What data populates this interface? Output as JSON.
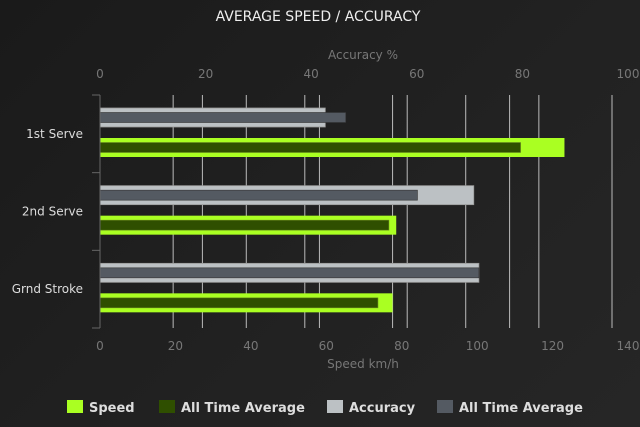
{
  "chart_data": {
    "type": "bar",
    "orientation": "horizontal",
    "title": "AVERAGE SPEED / ACCURACY",
    "categories": [
      "1st Serve",
      "2nd Serve",
      "Grnd Stroke"
    ],
    "x_axis_bottom": {
      "label": "Speed km/h",
      "range": [
        0,
        140
      ],
      "ticks": [
        "0",
        "20",
        "40",
        "60",
        "80",
        "100",
        "120",
        "140"
      ]
    },
    "x_axis_top": {
      "label": "Accuracy %",
      "range": [
        0,
        100
      ],
      "ticks": [
        "0",
        "20",
        "40",
        "60",
        "80",
        "100"
      ]
    },
    "grid": true,
    "legend_position": "bottom",
    "series": [
      {
        "name": "Speed",
        "axis": "speed",
        "color": "#aaff22",
        "values": [
          127,
          81,
          80
        ]
      },
      {
        "name": "All Time Average",
        "axis": "speed",
        "color": "#2f4f00",
        "values": [
          115,
          79,
          76
        ]
      },
      {
        "name": "Accuracy",
        "axis": "accuracy",
        "color": "#bcc1c4",
        "values": [
          44,
          73,
          74
        ]
      },
      {
        "name": "All Time Average",
        "axis": "accuracy",
        "color": "#545a62",
        "values": [
          48,
          62,
          74
        ]
      }
    ]
  }
}
